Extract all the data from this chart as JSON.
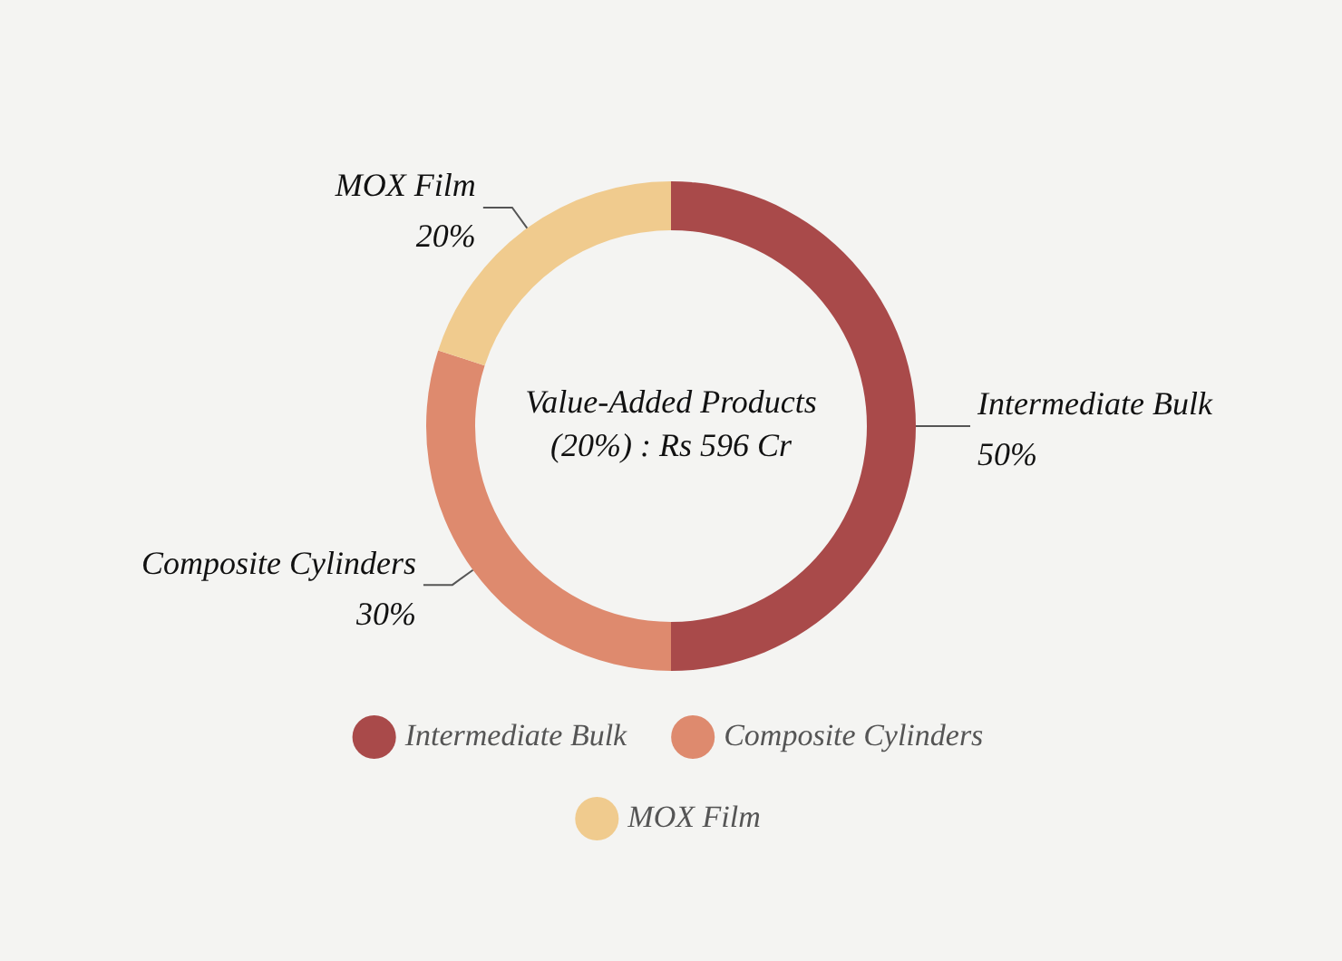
{
  "chart_data": {
    "type": "donut",
    "title": "Value-Added Products (20%) : Rs 596 Cr",
    "categories": [
      "Intermediate Bulk",
      "Composite Cylinders",
      "MOX Film"
    ],
    "values": [
      50,
      30,
      20
    ],
    "colors": [
      "#a94a4a",
      "#de8a6e",
      "#f0cb8e"
    ],
    "value_labels": [
      "50%",
      "30%",
      "20%"
    ],
    "legend": "bottom"
  }
}
